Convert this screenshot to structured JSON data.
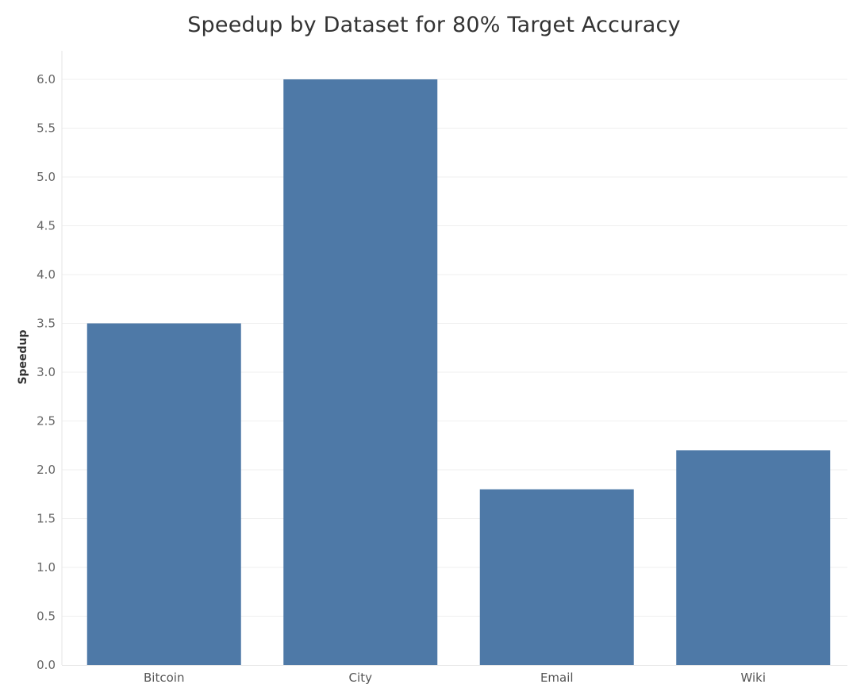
{
  "chart_data": {
    "type": "bar",
    "title": "Speedup by Dataset for 80% Target Accuracy",
    "xlabel": "",
    "ylabel": "Speedup",
    "categories": [
      "Bitcoin",
      "City",
      "Email",
      "Wiki"
    ],
    "values": [
      3.5,
      6.0,
      1.8,
      2.2
    ],
    "ylim": [
      0,
      6.0
    ],
    "yticks": [
      "0.0",
      "0.5",
      "1.0",
      "1.5",
      "2.0",
      "2.5",
      "3.0",
      "3.5",
      "4.0",
      "4.5",
      "5.0",
      "5.5",
      "6.0"
    ],
    "grid": true,
    "bar_color": "#4e79a7"
  }
}
